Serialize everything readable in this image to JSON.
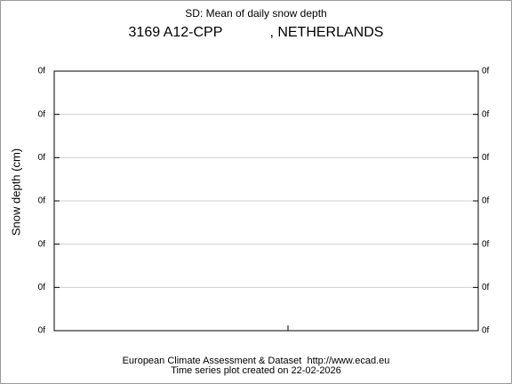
{
  "chart_data": {
    "type": "line",
    "title": "SD: Mean of daily snow depth",
    "subtitle": "3169 A12-CPP            , NETHERLANDS",
    "ylabel": "Snow depth (cm)",
    "ylim": [
      0,
      6
    ],
    "yticks": [
      {
        "value": 0,
        "label": "0f"
      },
      {
        "value": 1,
        "label": "0f"
      },
      {
        "value": 2,
        "label": "0f"
      },
      {
        "value": 3,
        "label": "0f"
      },
      {
        "value": 4,
        "label": "0f"
      },
      {
        "value": 5,
        "label": "0f"
      },
      {
        "value": 6,
        "label": "0f"
      }
    ],
    "grid": true
  },
  "footer": {
    "line1": "European Climate Assessment & Dataset  http://www.ecad.eu",
    "line2": "Time series plot created on 22-02-2026"
  }
}
